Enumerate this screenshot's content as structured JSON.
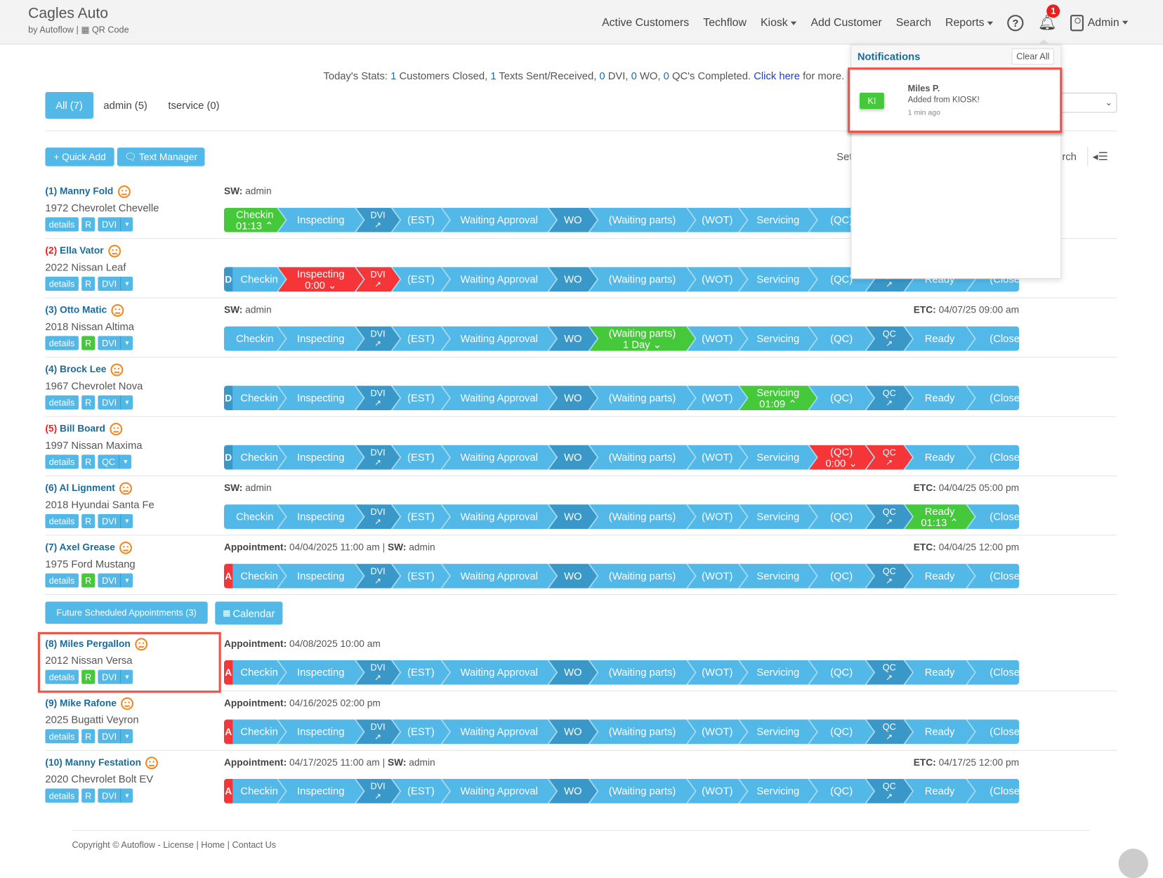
{
  "header": {
    "brand": "Cagles Auto",
    "sub_by": "by Autoflow",
    "sub_sep": "|",
    "qr_label": "QR Code",
    "nav": [
      "Active Customers",
      "Techflow",
      "Kiosk",
      "Add Customer",
      "Search",
      "Reports"
    ],
    "help": "?",
    "notif_count": "1",
    "user": "Admin"
  },
  "stats": {
    "prefix": "Today's Stats:",
    "closed": "1",
    "closed_label": "Customers Closed,",
    "texts": "1",
    "texts_label": "Texts Sent/Received,",
    "dvi": "0",
    "dvi_label": "DVI,",
    "wo": "0",
    "wo_label": "WO,",
    "qc": "0",
    "qc_label": "QC's Completed.",
    "link": "Click here",
    "suffix": "for more."
  },
  "tabs": [
    {
      "label": "All (7)",
      "active": true
    },
    {
      "label": "admin (5)"
    },
    {
      "label": "tservice (0)"
    }
  ],
  "toolbar": {
    "quick_add": "+ Quick Add",
    "text_manager": "Text Manager",
    "set_partial": "Set",
    "search_partial": "rch"
  },
  "stages": [
    "Checkin",
    "Inspecting",
    "DVI",
    "(EST)",
    "Waiting Approval",
    "WO",
    "(Waiting parts)",
    "(WOT)",
    "Servicing",
    "(QC)",
    "QC",
    "Ready",
    "(Close)"
  ],
  "colors": {
    "base": "#52b8e8",
    "dark": "#3a98c8",
    "green": "#45c93b",
    "red": "#f53538",
    "marker_d": "#3a98c8",
    "marker_a": "#f53538"
  },
  "customers": [
    {
      "idx": "(1)",
      "name": "Manny Fold",
      "idx_red": false,
      "vehicle": "1972 Chevrolet Chevelle",
      "r_green": false,
      "third": "DVI",
      "info_left": [
        [
          "SW:",
          "admin"
        ]
      ],
      "info_right": null,
      "marker": null,
      "states": {
        "0": [
          "g",
          "01:13 ⌃"
        ]
      }
    },
    {
      "idx": "(2)",
      "name": "Ella Vator",
      "idx_red": true,
      "vehicle": "2022 Nissan Leaf",
      "r_green": false,
      "third": "DVI",
      "info_left": null,
      "info_right": null,
      "marker": "D",
      "states": {
        "1": [
          "r",
          "0:00 ⌄"
        ],
        "2": [
          "r",
          null
        ]
      }
    },
    {
      "idx": "(3)",
      "name": "Otto Matic",
      "idx_red": false,
      "vehicle": "2018 Nissan Altima",
      "r_green": true,
      "third": "DVI",
      "info_left": [
        [
          "SW:",
          "admin"
        ]
      ],
      "info_right": [
        "ETC:",
        "04/07/25 09:00 am"
      ],
      "marker": null,
      "states": {
        "6": [
          "g",
          "1 Day ⌄"
        ]
      }
    },
    {
      "idx": "(4)",
      "name": "Brock Lee",
      "idx_red": false,
      "vehicle": "1967 Chevrolet Nova",
      "r_green": false,
      "third": "DVI",
      "info_left": null,
      "info_right": null,
      "marker": "D",
      "states": {
        "8": [
          "g",
          "01:09 ⌃"
        ]
      }
    },
    {
      "idx": "(5)",
      "name": "Bill Board",
      "idx_red": true,
      "vehicle": "1997 Nissan Maxima",
      "r_green": false,
      "third": "QC",
      "info_left": null,
      "info_right": null,
      "marker": "D",
      "states": {
        "9": [
          "r",
          "0:00 ⌄"
        ],
        "10": [
          "r",
          null
        ]
      }
    },
    {
      "idx": "(6)",
      "name": "Al Lignment",
      "idx_red": false,
      "vehicle": "2018 Hyundai Santa Fe",
      "r_green": false,
      "third": "DVI",
      "info_left": [
        [
          "SW:",
          "admin"
        ]
      ],
      "info_right": [
        "ETC:",
        "04/04/25 05:00 pm"
      ],
      "marker": null,
      "states": {
        "11": [
          "g",
          "01:13 ⌃"
        ]
      }
    },
    {
      "idx": "(7)",
      "name": "Axel Grease",
      "idx_red": false,
      "vehicle": "1975 Ford Mustang",
      "r_green": true,
      "third": "DVI",
      "info_left": [
        [
          "Appointment:",
          "04/04/2025 11:00 am"
        ],
        [
          "SW:",
          "admin"
        ]
      ],
      "info_right": [
        "ETC:",
        "04/04/25 12:00 pm"
      ],
      "marker": "A",
      "states": {}
    },
    {
      "idx": "(8)",
      "name": "Miles Pergallon",
      "idx_red": false,
      "vehicle": "2012 Nissan Versa",
      "r_green": true,
      "third": "DVI",
      "info_left": [
        [
          "Appointment:",
          "04/08/2025 10:00 am"
        ]
      ],
      "info_right": null,
      "marker": "A",
      "states": {}
    },
    {
      "idx": "(9)",
      "name": "Mike Rafone",
      "idx_red": false,
      "vehicle": "2025 Bugatti Veyron",
      "r_green": false,
      "third": "DVI",
      "info_left": [
        [
          "Appointment:",
          "04/16/2025 02:00 pm"
        ]
      ],
      "info_right": null,
      "marker": "A",
      "states": {}
    },
    {
      "idx": "(10)",
      "name": "Manny Festation",
      "idx_red": false,
      "vehicle": "2020 Chevrolet Bolt EV",
      "r_green": false,
      "third": "DVI",
      "info_left": [
        [
          "Appointment:",
          "04/17/2025 11:00 am"
        ],
        [
          "SW:",
          "admin"
        ]
      ],
      "info_right": [
        "ETC:",
        "04/17/25 12:00 pm"
      ],
      "marker": "A",
      "states": {}
    }
  ],
  "row_buttons": {
    "details": "details",
    "r": "R"
  },
  "future": {
    "label": "Future Scheduled Appointments (3)",
    "calendar": "Calendar"
  },
  "notifications": {
    "title": "Notifications",
    "clear": "Clear All",
    "items": [
      {
        "avatar": "KI",
        "name": "Miles P.",
        "message": "Added from KIOSK!",
        "time": "1 min ago"
      }
    ]
  },
  "footer": {
    "text": "Copyright © Autoflow - ",
    "license": "License",
    "home": "Home",
    "contact": "Contact Us",
    "sep": " | "
  }
}
